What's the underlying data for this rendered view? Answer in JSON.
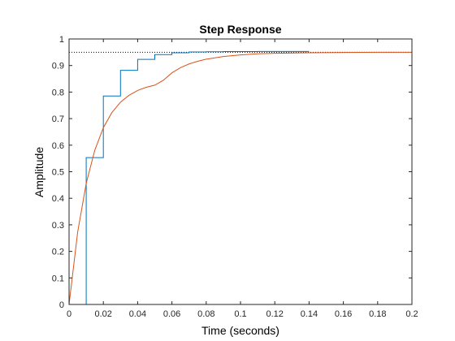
{
  "chart_data": {
    "type": "line",
    "title": "Step Response",
    "xlabel": "Time (seconds)",
    "ylabel": "Amplitude",
    "xlim": [
      0,
      0.2
    ],
    "ylim": [
      0,
      1
    ],
    "x_ticks": [
      "0",
      "0.02",
      "0.04",
      "0.06",
      "0.08",
      "0.1",
      "0.12",
      "0.14",
      "0.16",
      "0.18",
      "0.2"
    ],
    "y_ticks": [
      "0",
      "0.1",
      "0.2",
      "0.3",
      "0.4",
      "0.5",
      "0.6",
      "0.7",
      "0.8",
      "0.9",
      "1"
    ],
    "grid": false,
    "steady_state_value": 0.95,
    "series": [
      {
        "kind": "stairs",
        "color": "#0072bd",
        "x": [
          0,
          0.01,
          0.02,
          0.03,
          0.04,
          0.05,
          0.06,
          0.07,
          0.08,
          0.09,
          0.1,
          0.11,
          0.12,
          0.13,
          0.14
        ],
        "values": [
          0,
          0.553,
          0.785,
          0.882,
          0.923,
          0.941,
          0.948,
          0.951,
          0.952,
          0.9525,
          0.9527,
          0.9528,
          0.9528,
          0.9528,
          0.9528
        ]
      },
      {
        "kind": "line",
        "color": "#d95319",
        "x": [
          0,
          0.005,
          0.01,
          0.015,
          0.02,
          0.025,
          0.03,
          0.035,
          0.04,
          0.045,
          0.05,
          0.055,
          0.06,
          0.065,
          0.07,
          0.075,
          0.08,
          0.09,
          0.1,
          0.11,
          0.12,
          0.14,
          0.16,
          0.18,
          0.2
        ],
        "values": [
          0,
          0.272,
          0.456,
          0.581,
          0.666,
          0.723,
          0.762,
          0.788,
          0.806,
          0.818,
          0.826,
          0.8445,
          0.8725,
          0.892,
          0.906,
          0.916,
          0.924,
          0.934,
          0.94,
          0.944,
          0.946,
          0.948,
          0.949,
          0.95,
          0.95
        ]
      }
    ]
  }
}
